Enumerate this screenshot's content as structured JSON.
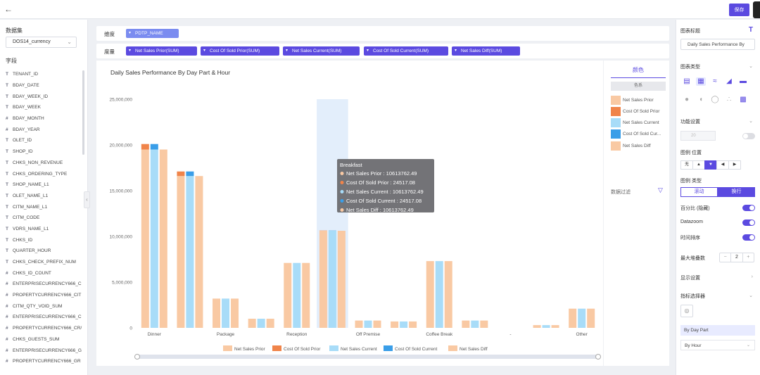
{
  "header": {
    "back_icon": "arrow-left-icon",
    "save_label": "保存"
  },
  "left_panel": {
    "dataset_title": "数据集",
    "dataset_value": "DOS14_currency",
    "fields_title": "字段",
    "fields": [
      {
        "type": "T",
        "name": "TENANT_ID"
      },
      {
        "type": "T",
        "name": "BDAY_DATE"
      },
      {
        "type": "T",
        "name": "BDAY_WEEK_ID"
      },
      {
        "type": "T",
        "name": "BDAY_WEEK"
      },
      {
        "type": "#",
        "name": "BDAY_MONTH"
      },
      {
        "type": "#",
        "name": "BDAY_YEAR"
      },
      {
        "type": "T",
        "name": "OLET_ID"
      },
      {
        "type": "T",
        "name": "SHOP_ID"
      },
      {
        "type": "T",
        "name": "CHKS_NON_REVENUE"
      },
      {
        "type": "T",
        "name": "CHKS_ORDERING_TYPE"
      },
      {
        "type": "T",
        "name": "SHOP_NAME_L1"
      },
      {
        "type": "T",
        "name": "OLET_NAME_L1"
      },
      {
        "type": "T",
        "name": "CITM_NAME_L1"
      },
      {
        "type": "T",
        "name": "CITM_CODE"
      },
      {
        "type": "T",
        "name": "VDRS_NAME_L1"
      },
      {
        "type": "T",
        "name": "CHKS_ID"
      },
      {
        "type": "T",
        "name": "QUARTER_HOUR"
      },
      {
        "type": "T",
        "name": "CHKS_CHECK_PREFIX_NUM"
      },
      {
        "type": "#",
        "name": "CHKS_ID_COUNT"
      },
      {
        "type": "#",
        "name": "ENTERPRISECURRENCY666_C"
      },
      {
        "type": "#",
        "name": "PROPERTYCURRENCY666_CIT"
      },
      {
        "type": "#",
        "name": "CITM_QTY_VOID_SUM"
      },
      {
        "type": "#",
        "name": "ENTERPRISECURRENCY666_C"
      },
      {
        "type": "#",
        "name": "PROPERTYCURRENCY666_CR/"
      },
      {
        "type": "#",
        "name": "CHKS_GUESTS_SUM"
      },
      {
        "type": "#",
        "name": "ENTERPRISECURRENCY666_G"
      },
      {
        "type": "#",
        "name": "PROPERTYCURRENCY666_GR"
      }
    ]
  },
  "dimension_bar": {
    "label": "维度",
    "pills": [
      "PDTP_NAME"
    ]
  },
  "measure_bar": {
    "label": "度量",
    "pills": [
      "Net Sales Prior(SUM)",
      "Cost Of Sold Prior(SUM)",
      "Net Sales Current(SUM)",
      "Cost Of Sold Current(SUM)",
      "Net Sales Diff(SUM)"
    ]
  },
  "chart_data": {
    "type": "bar",
    "title": "Daily Sales Performance By Day Part & Hour",
    "categories": [
      "Dinner",
      "",
      "Package",
      "",
      "Reception",
      "",
      "Off Premise",
      "",
      "Coffee Break",
      "",
      "-",
      "",
      "Other"
    ],
    "series": [
      {
        "name": "Net Sales Prior",
        "color": "#f9c9a3",
        "values": [
          19500000,
          16600000,
          3200000,
          1000000,
          7100000,
          10613762.49,
          800000,
          700000,
          7300000,
          800000,
          0,
          300000,
          2100000
        ]
      },
      {
        "name": "Cost Of Sold Prior",
        "color": "#f0844a",
        "values": [
          600000,
          500000,
          0,
          0,
          0,
          24517.08,
          0,
          0,
          0,
          0,
          0,
          0,
          0
        ]
      },
      {
        "name": "Net Sales Current",
        "color": "#a8dcf8",
        "values": [
          19500000,
          16600000,
          3200000,
          1000000,
          7100000,
          10613762.49,
          800000,
          700000,
          7300000,
          800000,
          0,
          300000,
          2100000
        ]
      },
      {
        "name": "Cost Of Sold Current",
        "color": "#3a9ee8",
        "values": [
          600000,
          500000,
          0,
          0,
          0,
          24517.08,
          0,
          0,
          0,
          0,
          0,
          0,
          0
        ]
      },
      {
        "name": "Net Sales Diff",
        "color": "#f9c9a3",
        "values": [
          19500000,
          16600000,
          3200000,
          1000000,
          7100000,
          10613762.49,
          800000,
          700000,
          7300000,
          800000,
          0,
          300000,
          2100000
        ]
      }
    ],
    "yticks": [
      "0",
      "5,000,000",
      "10,000,000",
      "15,000,000",
      "20,000,000",
      "25,000,000"
    ],
    "ylim": [
      0,
      25000000
    ],
    "highlight_index": 5,
    "legend_position": "bottom",
    "tooltip": {
      "title": "Breakfast",
      "rows": [
        "Net Sales Prior : 10613762.49",
        "Cost Of Sold Prior : 24517.08",
        "Net Sales Current : 10613762.49",
        "Cost Of Sold Current : 24517.08",
        "Net Sales Diff : 10613762.49"
      ]
    }
  },
  "legend_panel": {
    "tab_label": "颜色",
    "color_tag": "色系",
    "items": [
      {
        "label": "Net Sales Prior",
        "color": "#f9c9a3"
      },
      {
        "label": "Cost Of Sold Prior",
        "color": "#f0844a"
      },
      {
        "label": "Net Sales Current",
        "color": "#a8dcf8"
      },
      {
        "label": "Cost Of Sold Cur...",
        "color": "#3a9ee8"
      },
      {
        "label": "Net Sales Diff",
        "color": "#f9c9a3"
      }
    ],
    "filter_label": "数据过滤"
  },
  "right_panel": {
    "chart_title_label": "图表标题",
    "chart_title_value": "Daily Sales Performance By",
    "chart_type_label": "图表类型",
    "function_settings_label": "功能设置",
    "disabled_field_value": "20",
    "legend_position_label": "图例 位置",
    "legend_position_options": [
      "无",
      "",
      "",
      "",
      ""
    ],
    "legend_type_label": "图例 类型",
    "legend_type_options": [
      "滚动",
      "换行"
    ],
    "toggles": [
      {
        "label": "百分比 (隐藏)",
        "on": true
      },
      {
        "label": "Datazoom",
        "on": true
      },
      {
        "label": "时间排序",
        "on": true
      }
    ],
    "max_stack_label": "最大堆叠数",
    "max_stack_value": "2",
    "display_settings_label": "显示设置",
    "indicator_selector_label": "指标选择器",
    "selector_items": [
      {
        "label": "By Day Part",
        "highlight": true
      },
      {
        "label": "By Hour",
        "highlight": false
      }
    ]
  }
}
